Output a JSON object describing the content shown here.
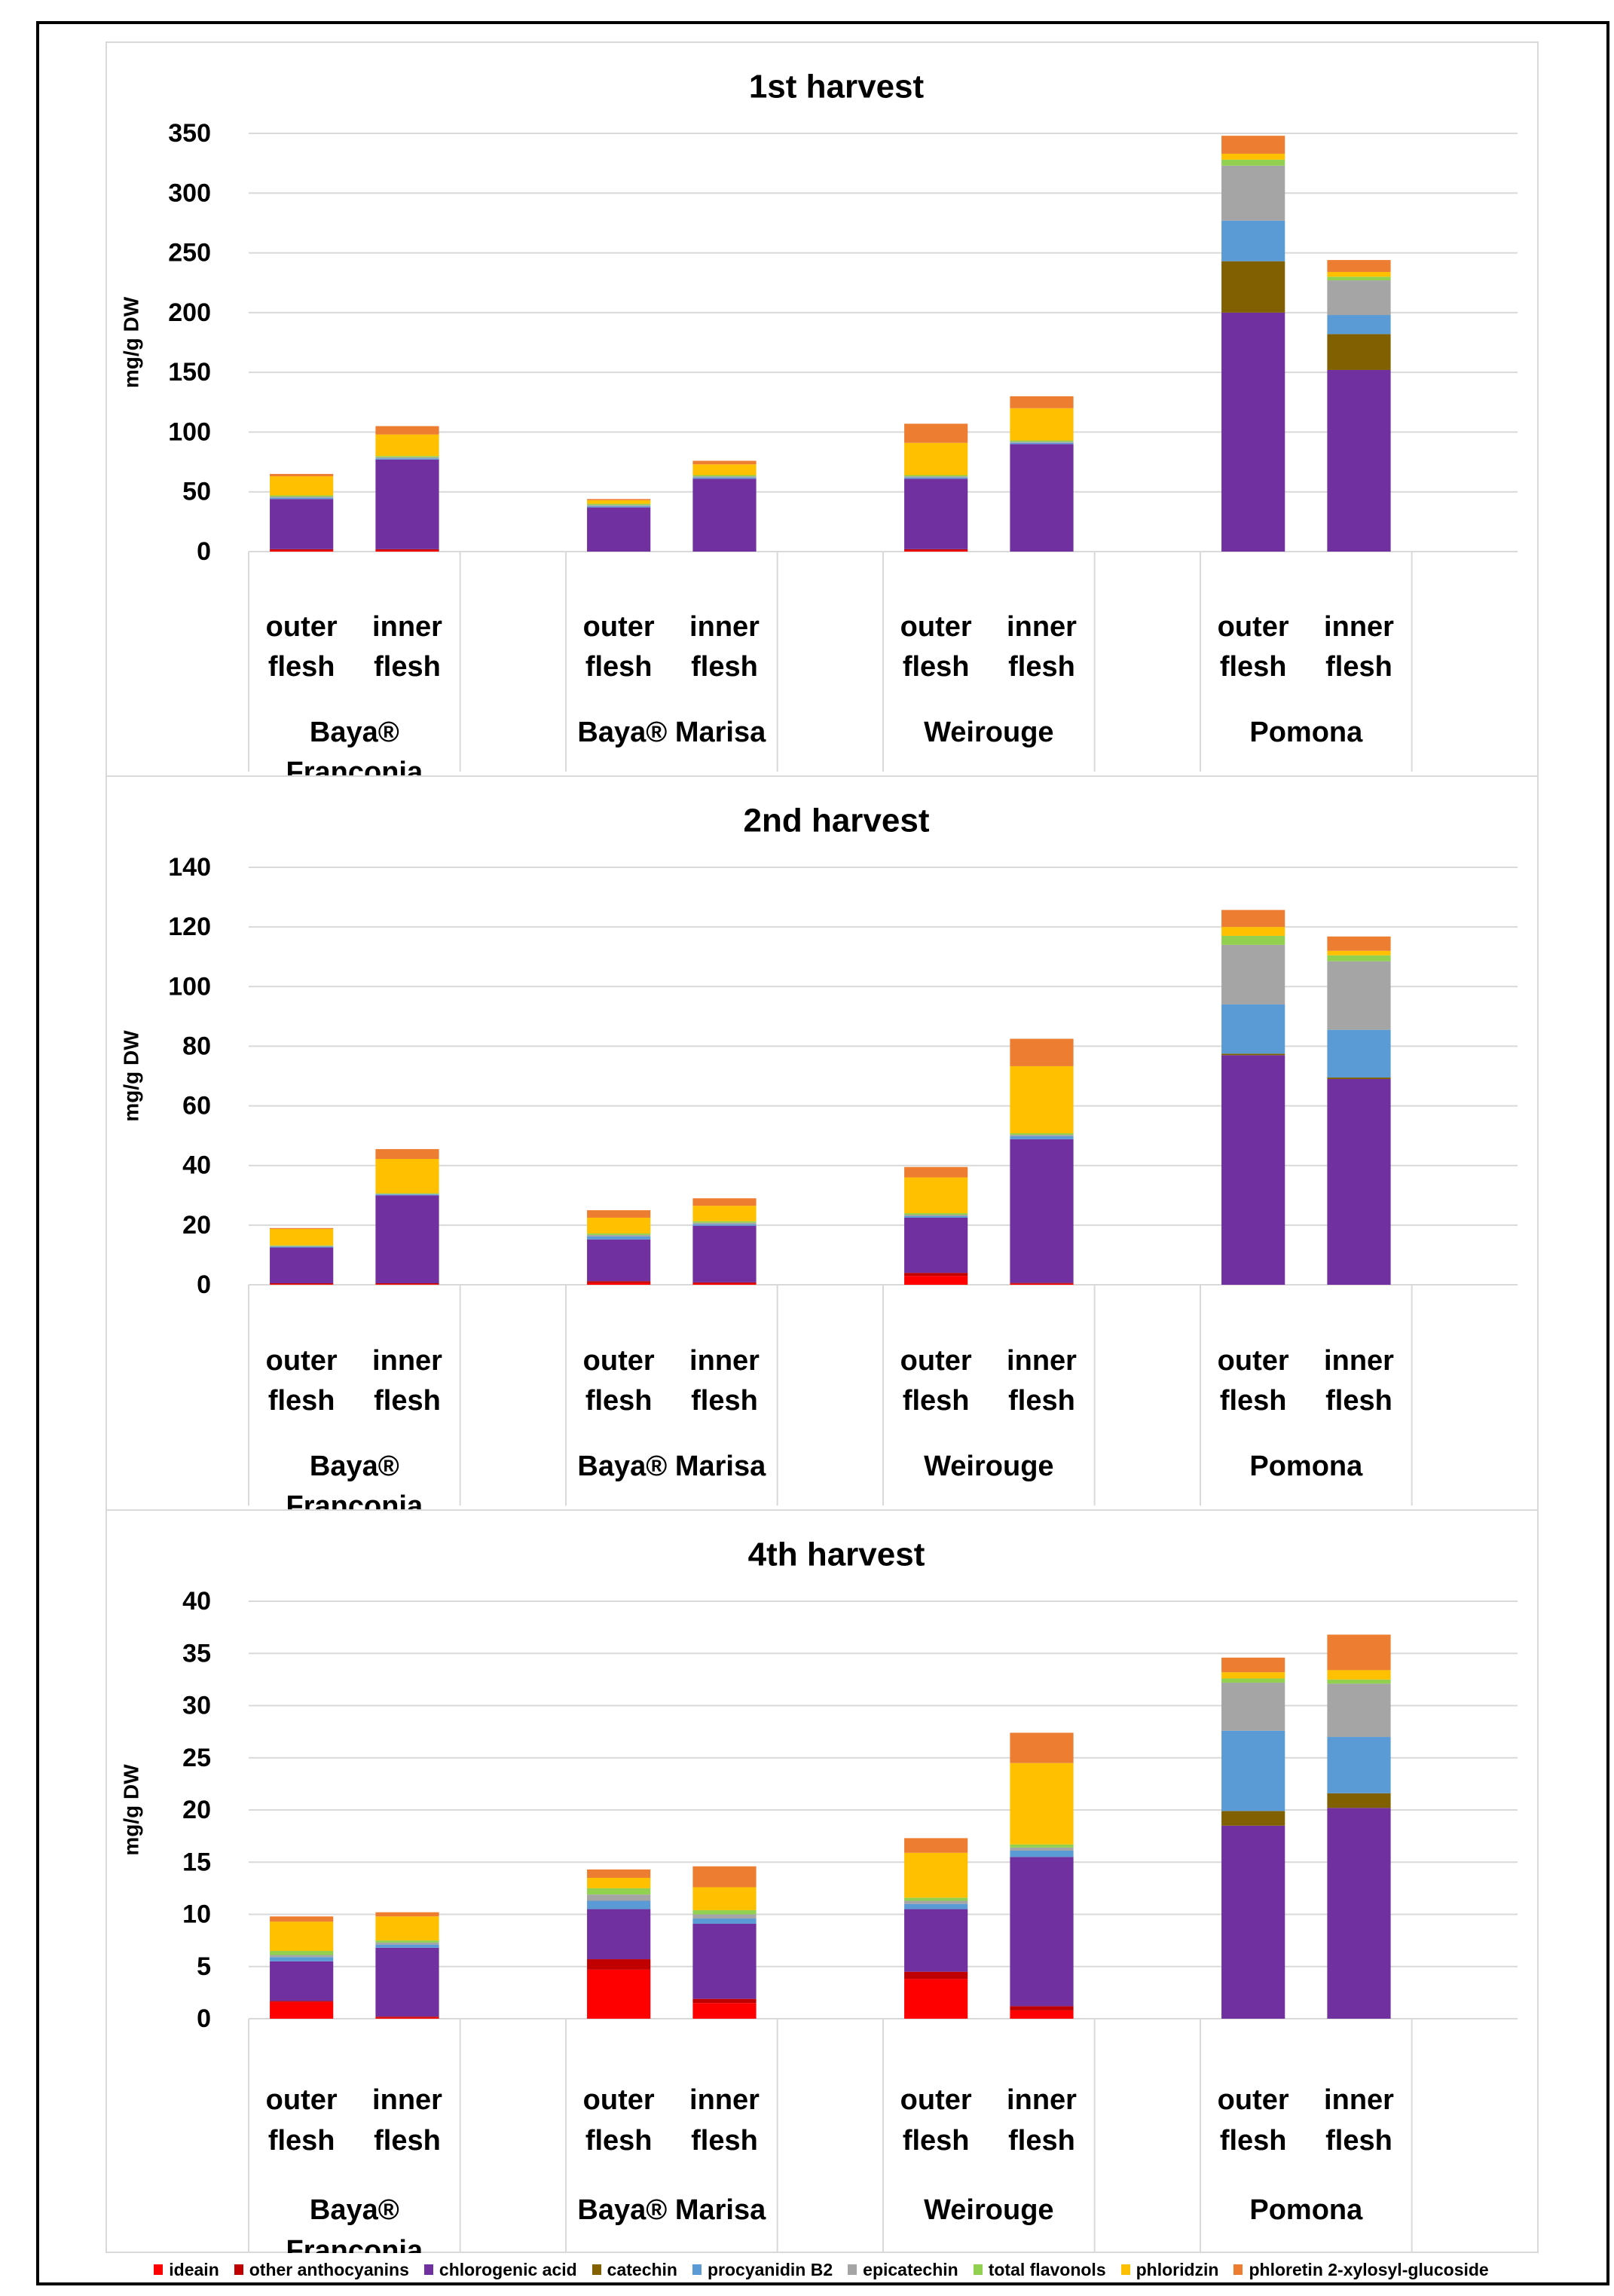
{
  "colors": {
    "ideain": "#ff0000",
    "other anthocyanins": "#c00000",
    "chlorogenic acid": "#7030a0",
    "catechin": "#806000",
    "procyanidin B2": "#5b9bd5",
    "epicatechin": "#a5a5a5",
    "total flavonols": "#92d050",
    "phloridzin": "#ffc000",
    "phloretin 2-xylosyl-glucoside": "#ed7d31"
  },
  "chart_data": [
    {
      "type": "bar",
      "stacked": true,
      "title": "1st harvest",
      "ylabel": "mg/g DW",
      "ylim": [
        0,
        350
      ],
      "yticks": [
        0,
        50,
        100,
        150,
        200,
        250,
        300,
        350
      ],
      "grid": true,
      "categories": [
        "outer flesh",
        "inner flesh",
        "outer flesh",
        "inner flesh",
        "outer flesh",
        "inner flesh",
        "outer flesh",
        "inner flesh"
      ],
      "groups": [
        "Baya® Franconia",
        "Baya® Marisa",
        "Weirouge",
        "Pomona"
      ],
      "series": [
        {
          "name": "ideain",
          "values": [
            1,
            1,
            0,
            0,
            1,
            0,
            0,
            0
          ]
        },
        {
          "name": "other anthocyanins",
          "values": [
            1,
            1,
            0,
            0,
            1,
            0,
            0,
            0
          ]
        },
        {
          "name": "chlorogenic acid",
          "values": [
            42,
            75,
            37,
            61,
            59,
            90,
            200,
            152
          ]
        },
        {
          "name": "catechin",
          "values": [
            0,
            0,
            0,
            0,
            0,
            0,
            43,
            30
          ]
        },
        {
          "name": "procyanidin B2",
          "values": [
            1,
            1,
            1,
            1,
            1,
            1,
            34,
            16
          ]
        },
        {
          "name": "epicatechin",
          "values": [
            1,
            1,
            1,
            1,
            1,
            1,
            46,
            29
          ]
        },
        {
          "name": "total flavonols",
          "values": [
            1,
            1,
            1,
            1,
            1,
            1,
            5,
            3
          ]
        },
        {
          "name": "phloridzin",
          "values": [
            16,
            18,
            3,
            9,
            27,
            27,
            5,
            4
          ]
        },
        {
          "name": "phloretin 2-xylosyl-glucoside",
          "values": [
            2,
            7,
            1,
            3,
            16,
            10,
            15,
            10
          ]
        }
      ]
    },
    {
      "type": "bar",
      "stacked": true,
      "title": "2nd harvest",
      "ylabel": "mg/g DW",
      "ylim": [
        0,
        140
      ],
      "yticks": [
        0,
        20,
        40,
        60,
        80,
        100,
        120,
        140
      ],
      "grid": true,
      "categories": [
        "outer flesh",
        "inner flesh",
        "outer flesh",
        "inner flesh",
        "outer flesh",
        "inner flesh",
        "outer flesh",
        "inner flesh"
      ],
      "groups": [
        "Baya® Franconia",
        "Baya® Marisa",
        "Weirouge",
        "Pomona"
      ],
      "series": [
        {
          "name": "ideain",
          "values": [
            0.2,
            0.2,
            0.6,
            0.4,
            3,
            0.3,
            0,
            0
          ]
        },
        {
          "name": "other anthocyanins",
          "values": [
            0.3,
            0.3,
            0.6,
            0.4,
            1,
            0.3,
            0,
            0
          ]
        },
        {
          "name": "chlorogenic acid",
          "values": [
            12,
            29.5,
            14,
            19,
            18.5,
            48.2,
            77,
            69
          ]
        },
        {
          "name": "catechin",
          "values": [
            0,
            0,
            0,
            0,
            0,
            0,
            0.5,
            0.5
          ]
        },
        {
          "name": "procyanidin B2",
          "values": [
            0.3,
            0.3,
            1,
            0.5,
            0.5,
            1,
            16.5,
            16
          ]
        },
        {
          "name": "epicatechin",
          "values": [
            0.2,
            0.2,
            0.5,
            0.5,
            0.5,
            0.5,
            20,
            23
          ]
        },
        {
          "name": "total flavonols",
          "values": [
            0.2,
            0.2,
            0.5,
            0.5,
            0.5,
            0.5,
            3,
            2
          ]
        },
        {
          "name": "phloridzin",
          "values": [
            5.5,
            11.5,
            5.3,
            5.2,
            12,
            22.5,
            3,
            1.5
          ]
        },
        {
          "name": "phloretin 2-xylosyl-glucoside",
          "values": [
            0.3,
            3.3,
            2.5,
            2.5,
            3.5,
            9.2,
            5.7,
            4.8
          ]
        }
      ]
    },
    {
      "type": "bar",
      "stacked": true,
      "title": "4th harvest",
      "ylabel": "mg/g DW",
      "ylim": [
        0,
        40
      ],
      "yticks": [
        0,
        5,
        10,
        15,
        20,
        25,
        30,
        35,
        40
      ],
      "grid": true,
      "categories": [
        "outer flesh",
        "inner flesh",
        "outer flesh",
        "inner flesh",
        "outer flesh",
        "inner flesh",
        "outer flesh",
        "inner flesh"
      ],
      "groups": [
        "Baya® Franconia",
        "Baya® Marisa",
        "Weirouge",
        "Pomona"
      ],
      "series": [
        {
          "name": "ideain",
          "values": [
            1.6,
            0.1,
            4.7,
            1.5,
            3.8,
            0.8,
            0,
            0
          ]
        },
        {
          "name": "other anthocyanins",
          "values": [
            0.1,
            0.1,
            1.0,
            0.4,
            0.7,
            0.4,
            0,
            0
          ]
        },
        {
          "name": "chlorogenic acid",
          "values": [
            3.8,
            6.6,
            4.8,
            7.2,
            6.0,
            14.3,
            18.5,
            20.2
          ]
        },
        {
          "name": "catechin",
          "values": [
            0,
            0,
            0,
            0,
            0,
            0,
            1.4,
            1.4
          ]
        },
        {
          "name": "procyanidin B2",
          "values": [
            0.4,
            0.3,
            0.8,
            0.5,
            0.5,
            0.6,
            7.7,
            5.4
          ]
        },
        {
          "name": "epicatechin",
          "values": [
            0.2,
            0.2,
            0.6,
            0.4,
            0.3,
            0.3,
            4.6,
            5.1
          ]
        },
        {
          "name": "total flavonols",
          "values": [
            0.4,
            0.2,
            0.6,
            0.4,
            0.3,
            0.3,
            0.4,
            0.4
          ]
        },
        {
          "name": "phloridzin",
          "values": [
            2.8,
            2.3,
            1.0,
            2.2,
            4.3,
            7.8,
            0.6,
            0.9
          ]
        },
        {
          "name": "phloretin 2-xylosyl-glucoside",
          "values": [
            0.5,
            0.4,
            0.8,
            2.0,
            1.4,
            2.9,
            1.4,
            3.4
          ]
        }
      ]
    }
  ],
  "legend": [
    "ideain",
    "other anthocyanins",
    "chlorogenic acid",
    "catechin",
    "procyanidin B2",
    "epicatechin",
    "total flavonols",
    "phloridzin",
    "phloretin 2-xylosyl-glucoside"
  ]
}
